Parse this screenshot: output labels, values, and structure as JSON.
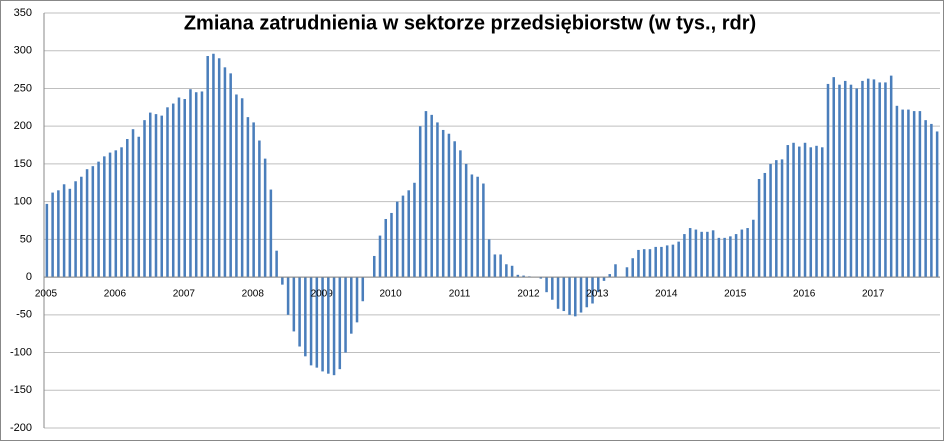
{
  "chart_data": {
    "type": "bar",
    "title": "Zmiana zatrudnienia w sektorze przedsiębiorstw (w tys., rdr)",
    "categories": [
      "2005",
      null,
      null,
      null,
      null,
      null,
      null,
      null,
      null,
      null,
      null,
      null,
      "2006",
      null,
      null,
      null,
      null,
      null,
      null,
      null,
      null,
      null,
      null,
      null,
      "2007",
      null,
      null,
      null,
      null,
      null,
      null,
      null,
      null,
      null,
      null,
      null,
      "2008",
      null,
      null,
      null,
      null,
      null,
      null,
      null,
      null,
      null,
      null,
      null,
      "2009",
      null,
      null,
      null,
      null,
      null,
      null,
      null,
      null,
      null,
      null,
      null,
      "2010",
      null,
      null,
      null,
      null,
      null,
      null,
      null,
      null,
      null,
      null,
      null,
      "2011",
      null,
      null,
      null,
      null,
      null,
      null,
      null,
      null,
      null,
      null,
      null,
      "2012",
      null,
      null,
      null,
      null,
      null,
      null,
      null,
      null,
      null,
      null,
      null,
      "2013",
      null,
      null,
      null,
      null,
      null,
      null,
      null,
      null,
      null,
      null,
      null,
      "2014",
      null,
      null,
      null,
      null,
      null,
      null,
      null,
      null,
      null,
      null,
      null,
      "2015",
      null,
      null,
      null,
      null,
      null,
      null,
      null,
      null,
      null,
      null,
      null,
      "2016",
      null,
      null,
      null,
      null,
      null,
      null,
      null,
      null,
      null,
      null,
      null,
      "2017",
      null,
      null,
      null,
      null,
      null,
      null,
      null,
      null,
      null,
      null,
      null
    ],
    "values": [
      97,
      112,
      115,
      123,
      117,
      127,
      133,
      143,
      147,
      153,
      160,
      165,
      168,
      172,
      183,
      196,
      186,
      208,
      218,
      216,
      214,
      225,
      230,
      238,
      236,
      249,
      245,
      246,
      293,
      296,
      290,
      278,
      270,
      242,
      237,
      212,
      205,
      181,
      157,
      116,
      35,
      -10,
      -50,
      -72,
      -92,
      -105,
      -117,
      -120,
      -125,
      -128,
      -130,
      -122,
      -100,
      -75,
      -60,
      -32,
      0,
      28,
      55,
      77,
      85,
      100,
      108,
      115,
      125,
      200,
      220,
      215,
      205,
      195,
      190,
      180,
      168,
      150,
      136,
      133,
      124,
      50,
      30,
      30,
      17,
      15,
      3,
      2,
      1,
      0,
      -2,
      -20,
      -30,
      -42,
      -45,
      -50,
      -52,
      -47,
      -40,
      -35,
      -20,
      -5,
      4,
      17,
      0,
      13,
      25,
      36,
      37,
      37,
      40,
      40,
      42,
      43,
      47,
      57,
      65,
      63,
      60,
      60,
      62,
      52,
      52,
      54,
      57,
      63,
      65,
      76,
      130,
      138,
      150,
      155,
      156,
      175,
      178,
      173,
      178,
      172,
      174,
      172,
      256,
      265,
      255,
      260,
      255,
      250,
      260,
      263,
      262,
      258,
      258,
      267,
      227,
      222,
      222,
      220,
      220,
      208,
      203,
      193
    ],
    "color": "#4a7ebb",
    "ylim": [
      -200,
      350
    ],
    "yticks": [
      -200,
      -150,
      -100,
      -50,
      0,
      50,
      100,
      150,
      200,
      250,
      300,
      350
    ],
    "grid": true
  }
}
